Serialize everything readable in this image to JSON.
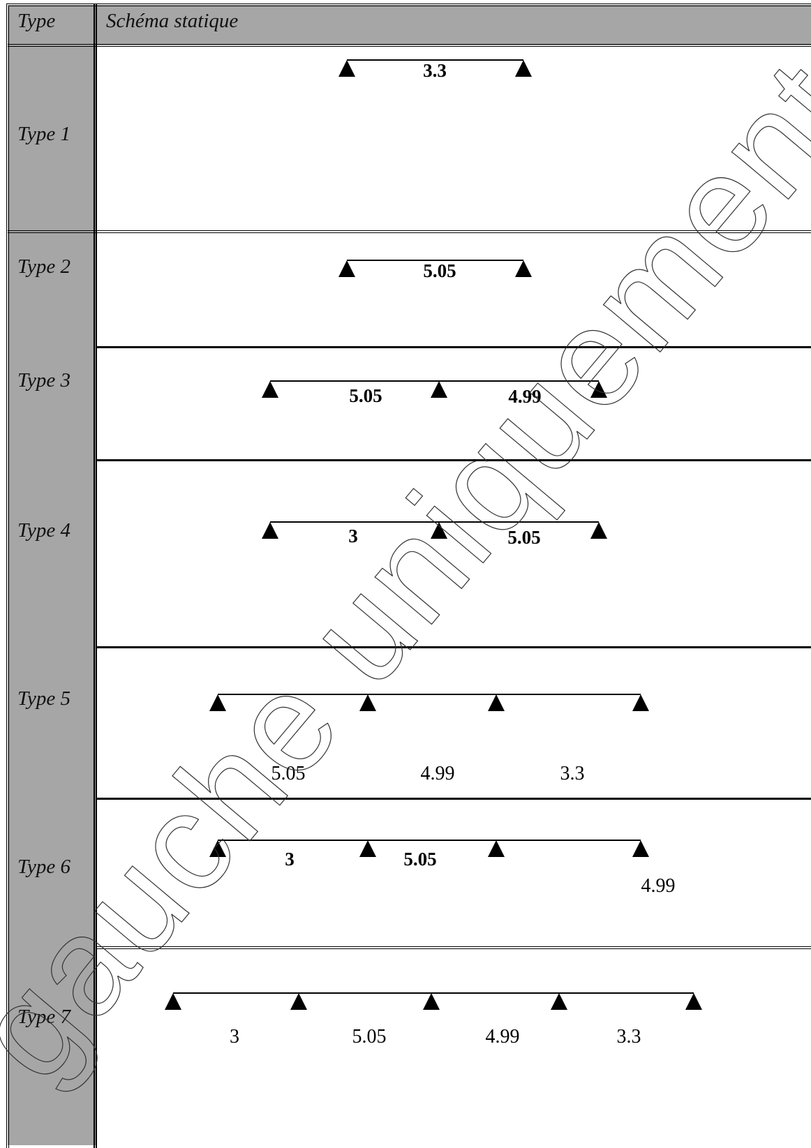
{
  "table": {
    "header": {
      "type_col": "Type",
      "schema_col": "Schéma statique"
    },
    "rows": [
      {
        "type": "Type 1",
        "spans": [
          {
            "value": "3.3",
            "style": "bold"
          }
        ]
      },
      {
        "type": "Type 2",
        "spans": [
          {
            "value": "5.05",
            "style": "bold"
          }
        ]
      },
      {
        "type": "Type 3",
        "spans": [
          {
            "value": "5.05",
            "style": "bold"
          },
          {
            "value": "4.99",
            "style": "bold"
          }
        ]
      },
      {
        "type": "Type 4",
        "spans": [
          {
            "value": "3",
            "style": "bold"
          },
          {
            "value": "5.05",
            "style": "bold"
          }
        ]
      },
      {
        "type": "Type 5",
        "spans": [
          {
            "value": "5.05",
            "style": "normal"
          },
          {
            "value": "4.99",
            "style": "normal"
          },
          {
            "value": "3.3",
            "style": "normal"
          }
        ]
      },
      {
        "type": "Type 6",
        "spans": [
          {
            "value": "3",
            "style": "bold"
          },
          {
            "value": "5.05",
            "style": "bold"
          },
          {
            "value": "4.99",
            "style": "normal"
          }
        ]
      },
      {
        "type": "Type 7",
        "spans": [
          {
            "value": "3",
            "style": "normal"
          },
          {
            "value": "5.05",
            "style": "normal"
          },
          {
            "value": "4.99",
            "style": "normal"
          },
          {
            "value": "3.3",
            "style": "normal"
          }
        ]
      }
    ]
  },
  "watermark": {
    "text": "gauche uniquement"
  },
  "colors": {
    "header_bg": "#a6a6a6",
    "type_col_bg": "#a6a6a6",
    "line": "#000000"
  }
}
